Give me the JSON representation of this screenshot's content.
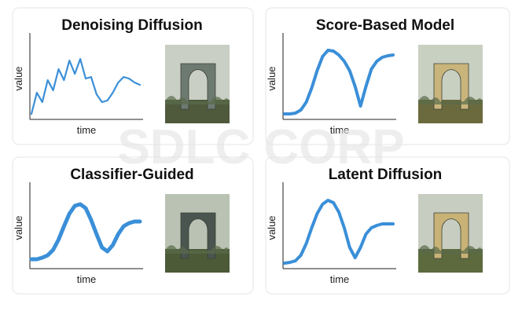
{
  "watermark": "SDLC CORP",
  "chart_data": [
    {
      "type": "line",
      "title": "Denoising Diffusion",
      "x_label": "time",
      "y_label": "value",
      "color": "#3a8fd8",
      "line_width": 2.2,
      "x": [
        0,
        0.5,
        1,
        1.5,
        2,
        2.5,
        3,
        3.5,
        4,
        4.5,
        5,
        5.5,
        6,
        6.5,
        7,
        7.5,
        8,
        8.5,
        9,
        9.5,
        10
      ],
      "values": [
        0.05,
        0.32,
        0.2,
        0.48,
        0.35,
        0.62,
        0.48,
        0.73,
        0.56,
        0.75,
        0.5,
        0.52,
        0.3,
        0.2,
        0.22,
        0.32,
        0.45,
        0.52,
        0.5,
        0.45,
        0.42
      ],
      "xlim": [
        0,
        10
      ],
      "ylim": [
        0,
        1
      ]
    },
    {
      "type": "line",
      "title": "Score-Based Model",
      "x_label": "time",
      "y_label": "value",
      "color": "#3a8fd8",
      "line_width": 4,
      "x": [
        0,
        0.5,
        1,
        1.5,
        2,
        2.5,
        3,
        3.5,
        4,
        4.5,
        5,
        5.5,
        6,
        6.5,
        7,
        7.5,
        8,
        8.5,
        9,
        9.5,
        10
      ],
      "values": [
        0.05,
        0.05,
        0.06,
        0.1,
        0.2,
        0.38,
        0.6,
        0.78,
        0.86,
        0.85,
        0.8,
        0.72,
        0.6,
        0.4,
        0.15,
        0.4,
        0.62,
        0.72,
        0.77,
        0.79,
        0.8
      ],
      "xlim": [
        0,
        10
      ],
      "ylim": [
        0,
        1
      ]
    },
    {
      "type": "line",
      "title": "Classifier-Guided",
      "x_label": "time",
      "y_label": "value",
      "color": "#3a8fd8",
      "line_width": 5,
      "x": [
        0,
        0.5,
        1,
        1.5,
        2,
        2.5,
        3,
        3.5,
        4,
        4.5,
        5,
        5.5,
        6,
        6.5,
        7,
        7.5,
        8,
        8.5,
        9,
        9.5,
        10
      ],
      "values": [
        0.1,
        0.1,
        0.12,
        0.15,
        0.22,
        0.35,
        0.52,
        0.68,
        0.78,
        0.8,
        0.75,
        0.6,
        0.42,
        0.25,
        0.2,
        0.28,
        0.42,
        0.52,
        0.56,
        0.58,
        0.58
      ],
      "xlim": [
        0,
        10
      ],
      "ylim": [
        0,
        1
      ]
    },
    {
      "type": "line",
      "title": "Latent Diffusion",
      "x_label": "time",
      "y_label": "value",
      "color": "#3a8fd8",
      "line_width": 4,
      "x": [
        0,
        0.5,
        1,
        1.5,
        2,
        2.5,
        3,
        3.5,
        4,
        4.5,
        5,
        5.5,
        6,
        6.5,
        7,
        7.5,
        8,
        8.5,
        9,
        9.5,
        10
      ],
      "values": [
        0.05,
        0.06,
        0.08,
        0.15,
        0.3,
        0.5,
        0.68,
        0.8,
        0.85,
        0.82,
        0.7,
        0.5,
        0.25,
        0.12,
        0.25,
        0.42,
        0.5,
        0.53,
        0.55,
        0.55,
        0.55
      ],
      "xlim": [
        0,
        10
      ],
      "ylim": [
        0,
        1
      ]
    }
  ]
}
